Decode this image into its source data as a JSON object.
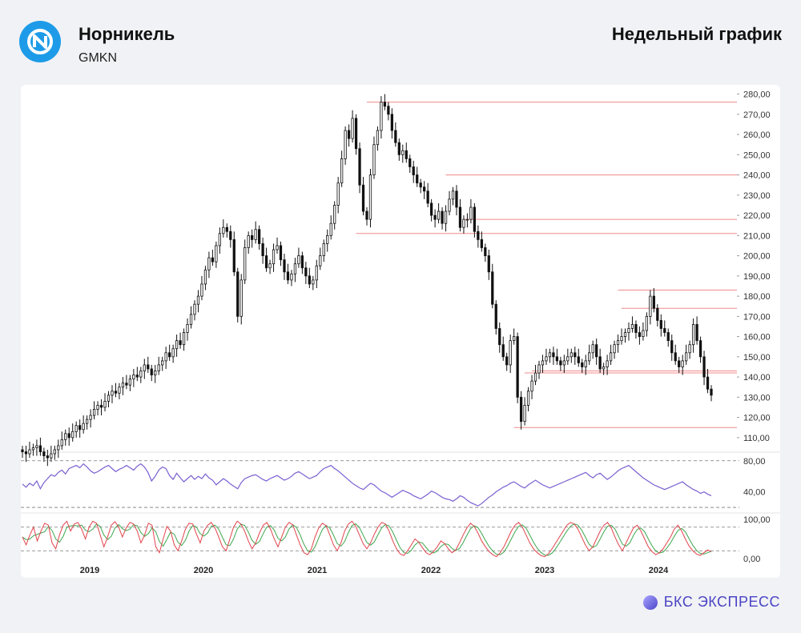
{
  "header": {
    "company": "Норникель",
    "ticker": "GMKN",
    "chart_title": "Недельный график",
    "logo_icon": "nornickel-logo-icon"
  },
  "footer": {
    "brand": "БКС ЭКСПРЕСС",
    "brand_icon": "bks-sphere-icon"
  },
  "colors": {
    "accent": "#1e9be8",
    "rsi": "#7a5fd0",
    "stoch_k": "#e0444c",
    "stoch_d": "#3ca74f",
    "level": "#f08a8a",
    "brand": "#4a45c4"
  },
  "chart_data": [
    {
      "type": "candlestick",
      "panel": "price",
      "x_ticks": [
        "2019",
        "2020",
        "2021",
        "2022",
        "2023",
        "2024"
      ],
      "y_ticks": [
        "280,00",
        "270,00",
        "260,00",
        "250,00",
        "240,00",
        "230,00",
        "220,00",
        "210,00",
        "200,00",
        "190,00",
        "180,00",
        "170,00",
        "160,00",
        "150,00",
        "140,00",
        "130,00",
        "120,00",
        "110,00"
      ],
      "ylim": [
        104,
        283
      ],
      "close": [
        103,
        102,
        104,
        105,
        106,
        103,
        101,
        100,
        102,
        104,
        106,
        109,
        112,
        110,
        113,
        116,
        114,
        117,
        119,
        121,
        124,
        126,
        125,
        128,
        131,
        133,
        132,
        135,
        137,
        136,
        139,
        141,
        140,
        143,
        146,
        144,
        141,
        143,
        146,
        148,
        152,
        150,
        154,
        158,
        156,
        162,
        166,
        171,
        176,
        180,
        186,
        193,
        199,
        197,
        205,
        211,
        214,
        212,
        208,
        192,
        170,
        188,
        204,
        210,
        208,
        213,
        206,
        200,
        194,
        196,
        203,
        205,
        198,
        192,
        188,
        191,
        196,
        200,
        194,
        190,
        186,
        188,
        195,
        200,
        206,
        210,
        216,
        225,
        236,
        248,
        262,
        258,
        268,
        253,
        235,
        222,
        218,
        240,
        255,
        262,
        276,
        274,
        270,
        262,
        256,
        250,
        252,
        248,
        244,
        240,
        236,
        234,
        232,
        226,
        220,
        218,
        222,
        216,
        222,
        228,
        232,
        224,
        214,
        218,
        218,
        224,
        212,
        208,
        204,
        200,
        192,
        176,
        164,
        156,
        150,
        146,
        158,
        160,
        130,
        118,
        126,
        133,
        138,
        142,
        146,
        148,
        150,
        152,
        150,
        148,
        146,
        148,
        150,
        152,
        150,
        147,
        145,
        148,
        152,
        156,
        150,
        144,
        145,
        148,
        152,
        156,
        158,
        160,
        162,
        164,
        166,
        162,
        160,
        163,
        170,
        180,
        174,
        168,
        164,
        162,
        158,
        152,
        148,
        145,
        148,
        152,
        156,
        166,
        158,
        150,
        140,
        134,
        131
      ]
    },
    {
      "type": "line",
      "panel": "rsi",
      "y_ticks": [
        "80,00",
        "40,00"
      ],
      "ylim": [
        18,
        88
      ],
      "levels": [
        80,
        20
      ],
      "values": [
        50,
        46,
        51,
        48,
        54,
        44,
        52,
        57,
        62,
        60,
        65,
        68,
        63,
        70,
        72,
        74,
        71,
        76,
        72,
        67,
        64,
        66,
        69,
        72,
        74,
        70,
        66,
        69,
        71,
        74,
        71,
        68,
        73,
        76,
        72,
        65,
        54,
        60,
        68,
        72,
        70,
        61,
        56,
        64,
        58,
        53,
        57,
        61,
        56,
        60,
        57,
        63,
        58,
        55,
        49,
        53,
        57,
        54,
        50,
        47,
        44,
        52,
        57,
        59,
        61,
        62,
        59,
        56,
        54,
        57,
        59,
        61,
        58,
        55,
        57,
        60,
        64,
        66,
        63,
        60,
        57,
        59,
        61,
        66,
        70,
        72,
        74,
        70,
        67,
        63,
        59,
        55,
        51,
        48,
        45,
        43,
        47,
        51,
        49,
        45,
        41,
        39,
        36,
        33,
        36,
        39,
        42,
        40,
        38,
        35,
        33,
        31,
        34,
        37,
        41,
        39,
        36,
        33,
        31,
        30,
        28,
        31,
        35,
        33,
        29,
        26,
        24,
        22,
        25,
        29,
        33,
        36,
        40,
        43,
        46,
        48,
        51,
        53,
        50,
        47,
        45,
        49,
        52,
        55,
        52,
        49,
        47,
        45,
        47,
        49,
        51,
        53,
        55,
        57,
        59,
        61,
        63,
        65,
        61,
        58,
        62,
        64,
        60,
        56,
        59,
        63,
        67,
        70,
        72,
        74,
        70,
        66,
        62,
        58,
        55,
        52,
        49,
        47,
        45,
        43,
        45,
        47,
        49,
        51,
        53,
        49,
        46,
        43,
        41,
        38,
        40,
        37,
        35
      ]
    },
    {
      "type": "line",
      "panel": "stochastic",
      "y_ticks": [
        "100,00",
        "0,00"
      ],
      "ylim": [
        -8,
        110
      ],
      "levels": [
        80,
        20
      ],
      "k": [
        55,
        35,
        60,
        80,
        45,
        70,
        90,
        85,
        40,
        25,
        60,
        85,
        95,
        70,
        88,
        92,
        75,
        50,
        80,
        95,
        90,
        60,
        30,
        55,
        85,
        94,
        80,
        55,
        78,
        92,
        88,
        70,
        40,
        60,
        90,
        85,
        30,
        15,
        50,
        82,
        70,
        35,
        20,
        45,
        75,
        90,
        88,
        62,
        40,
        70,
        85,
        92,
        78,
        55,
        30,
        20,
        50,
        80,
        95,
        88,
        70,
        45,
        25,
        40,
        65,
        85,
        92,
        75,
        50,
        30,
        55,
        80,
        92,
        86,
        60,
        35,
        15,
        10,
        25,
        55,
        78,
        90,
        84,
        60,
        35,
        20,
        40,
        70,
        88,
        95,
        82,
        60,
        38,
        25,
        40,
        62,
        80,
        92,
        88,
        70,
        45,
        25,
        12,
        8,
        20,
        35,
        50,
        42,
        28,
        15,
        10,
        18,
        30,
        45,
        38,
        25,
        15,
        22,
        40,
        60,
        78,
        90,
        82,
        65,
        45,
        30,
        18,
        10,
        5,
        15,
        30,
        50,
        70,
        85,
        92,
        80,
        60,
        40,
        25,
        15,
        8,
        5,
        12,
        25,
        40,
        55,
        70,
        85,
        92,
        88,
        75,
        55,
        35,
        20,
        30,
        50,
        70,
        85,
        92,
        78,
        55,
        35,
        20,
        40,
        60,
        78,
        85,
        70,
        50,
        30,
        18,
        10,
        15,
        25,
        40,
        55,
        75,
        85,
        70,
        50,
        32,
        20,
        12,
        8,
        15,
        22,
        18
      ]
    }
  ],
  "support_resistance_levels": [
    276,
    240,
    218,
    211,
    174,
    183,
    143,
    142,
    115
  ]
}
